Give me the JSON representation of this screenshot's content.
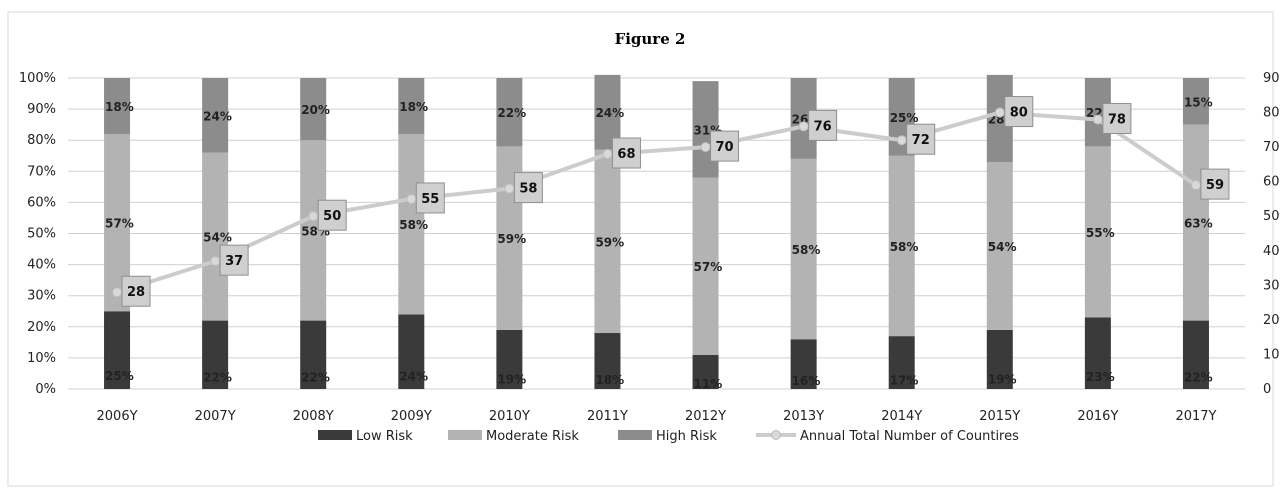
{
  "chart_data": {
    "type": "bar",
    "stacked": true,
    "title": "Figure 2",
    "categories": [
      "2006Y",
      "2007Y",
      "2008Y",
      "2009Y",
      "2010Y",
      "2011Y",
      "2012Y",
      "2013Y",
      "2014Y",
      "2015Y",
      "2016Y",
      "2017Y"
    ],
    "series": [
      {
        "name": "Low Risk",
        "color": "#3a3a3a",
        "values": [
          25,
          22,
          22,
          24,
          19,
          18,
          11,
          16,
          17,
          19,
          23,
          22
        ],
        "labels": [
          "25%",
          "22%",
          "22%",
          "24%",
          "19%",
          "18%",
          "11%",
          "16%",
          "17%",
          "19%",
          "23%",
          "22%"
        ]
      },
      {
        "name": "Moderate Risk",
        "color": "#b3b3b3",
        "values": [
          57,
          54,
          58,
          58,
          59,
          59,
          57,
          58,
          58,
          54,
          55,
          63
        ],
        "labels": [
          "57%",
          "54%",
          "58%",
          "58%",
          "59%",
          "59%",
          "57%",
          "58%",
          "58%",
          "54%",
          "55%",
          "63%"
        ]
      },
      {
        "name": "High Risk",
        "color": "#8c8c8c",
        "values": [
          18,
          24,
          20,
          18,
          22,
          24,
          31,
          26,
          25,
          28,
          22,
          15
        ],
        "labels": [
          "18%",
          "24%",
          "20%",
          "18%",
          "22%",
          "24%",
          "31%",
          "26%",
          "25%",
          "28%",
          "22%",
          "15%"
        ]
      }
    ],
    "line_series": {
      "name": "Annual Total Number of Countires",
      "color": "#cccccc",
      "values": [
        28,
        37,
        50,
        55,
        58,
        68,
        70,
        76,
        72,
        80,
        78,
        59
      ]
    },
    "y_left": {
      "ticks": [
        "0%",
        "10%",
        "20%",
        "30%",
        "40%",
        "50%",
        "60%",
        "70%",
        "80%",
        "90%",
        "100%"
      ],
      "ylim": [
        0,
        100
      ]
    },
    "y_right": {
      "ticks": [
        "0",
        "10",
        "20",
        "30",
        "40",
        "50",
        "60",
        "70",
        "80",
        "90"
      ],
      "ylim": [
        0,
        90
      ]
    },
    "grid": true,
    "legend": "bottom"
  }
}
